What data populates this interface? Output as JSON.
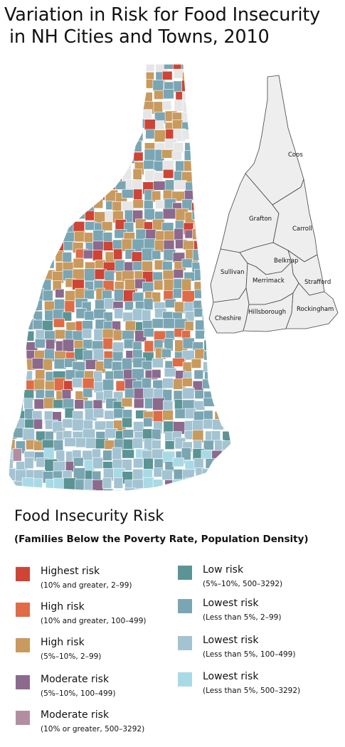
{
  "title": {
    "line1": "Variation in Risk for Food Insecurity",
    "line2": "in NH Cities and Towns, 2010"
  },
  "colors": {
    "highest": "#cf4435",
    "high_dense": "#df6c46",
    "high": "#c99a5e",
    "moderate": "#8c6a8e",
    "moderate_dense": "#b38ea3",
    "low_dense": "#5b9494",
    "lowest_sparse": "#7aa6b4",
    "lowest_mid": "#a3c3d2",
    "lowest_dense": "#a8dae6",
    "no_data": "#e6e6e6",
    "county_fill": "#eeeeee",
    "county_line": "#444444"
  },
  "counties": [
    {
      "name": "Coos"
    },
    {
      "name": "Grafton"
    },
    {
      "name": "Carroll"
    },
    {
      "name": "Belknap"
    },
    {
      "name": "Sullivan"
    },
    {
      "name": "Merrimack"
    },
    {
      "name": "Strafford"
    },
    {
      "name": "Cheshire"
    },
    {
      "name": "Hillsborough"
    },
    {
      "name": "Rockingham"
    }
  ],
  "legend": {
    "title": "Food Insecurity Risk",
    "subtitle": "(Families Below the Poverty Rate, Population Density)",
    "items": [
      {
        "label": "Highest risk",
        "detail": "(10% and greater, 2–99)",
        "color": "#cf4435"
      },
      {
        "label": "High risk",
        "detail": "(10% and greater, 100–499)",
        "color": "#df6c46"
      },
      {
        "label": "High risk",
        "detail": "(5%–10%, 2–99)",
        "color": "#c99a5e"
      },
      {
        "label": "Moderate risk",
        "detail": "(5%–10%, 100–499)",
        "color": "#8c6a8e"
      },
      {
        "label": "Moderate risk",
        "detail": "(10% or greater, 500–3292)",
        "color": "#b38ea3"
      },
      {
        "label": "Low risk",
        "detail": "(5%–10%, 500–3292)",
        "color": "#5b9494"
      },
      {
        "label": "Lowest risk",
        "detail": "(Less than 5%, 2–99)",
        "color": "#7aa6b4"
      },
      {
        "label": "Lowest risk",
        "detail": "(Less than 5%, 100–499)",
        "color": "#a3c3d2"
      },
      {
        "label": "Lowest risk",
        "detail": "(Less than 5%, 500–3292)",
        "color": "#a8dae6"
      }
    ]
  }
}
